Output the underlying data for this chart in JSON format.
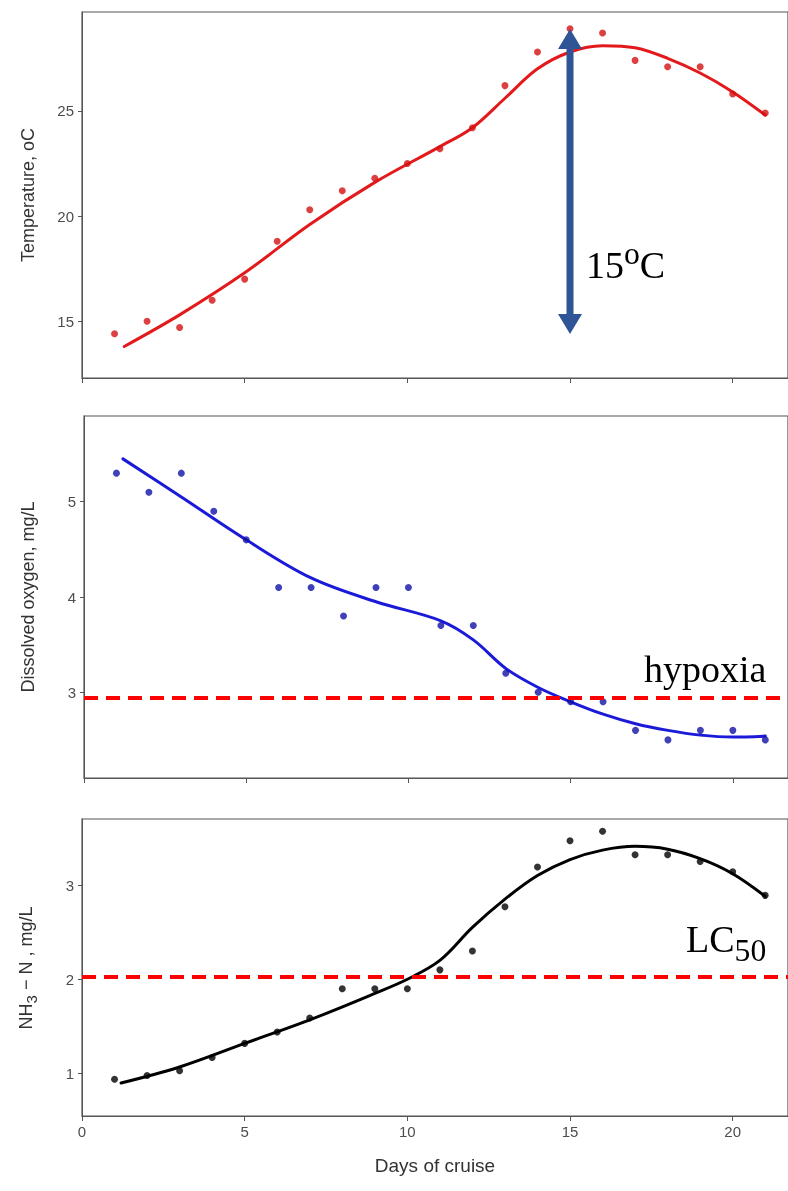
{
  "chart_data": [
    {
      "type": "scatter",
      "ylabel": "Temperature, oC",
      "x": [
        1,
        2,
        3,
        4,
        5,
        6,
        7,
        8,
        9,
        10,
        11,
        12,
        13,
        14,
        15,
        16,
        17,
        18,
        19,
        20,
        21
      ],
      "xlim": [
        0,
        21.7
      ],
      "xticks": [
        0,
        5,
        10,
        15,
        20
      ],
      "ylim": [
        12.3,
        29.7
      ],
      "yticks": [
        15,
        20,
        25
      ],
      "grid": false,
      "tick_labels": "y",
      "series": [
        {
          "color": "#d41010",
          "marker": "circle",
          "values": [
            14.4,
            15.0,
            14.7,
            16.0,
            17.0,
            18.8,
            20.3,
            21.2,
            21.8,
            22.5,
            23.2,
            24.2,
            26.2,
            27.8,
            28.9,
            28.7,
            27.4,
            27.1,
            27.1,
            25.8,
            24.9
          ]
        },
        {
          "type": "line",
          "color": "#e31a1c",
          "marker": "none",
          "line_style": "solid",
          "x": [
            1.3,
            3,
            5,
            7,
            9,
            11,
            12,
            13,
            14,
            15,
            16,
            17,
            18,
            19,
            20,
            21
          ],
          "values": [
            13.8,
            15.3,
            17.3,
            19.6,
            21.6,
            23.3,
            24.2,
            25.6,
            27.0,
            27.8,
            28.1,
            28.0,
            27.5,
            26.8,
            25.9,
            24.8
          ]
        }
      ],
      "annotations": [
        "15$^{o}$C"
      ]
    },
    {
      "type": "scatter",
      "ylabel": "Dissolved oxygen, mg/L",
      "x": [
        1,
        2,
        3,
        4,
        5,
        6,
        7,
        8,
        9,
        10,
        11,
        12,
        13,
        14,
        15,
        16,
        17,
        18,
        19,
        20,
        21
      ],
      "xlim": [
        0,
        21.7
      ],
      "xticks": [
        0,
        5,
        10,
        15,
        20
      ],
      "ylim": [
        2.1,
        5.9
      ],
      "yticks": [
        3,
        4,
        5
      ],
      "grid": false,
      "tick_labels": "y",
      "series": [
        {
          "color": "#1010a8",
          "marker": "circle",
          "values": [
            5.3,
            5.1,
            5.3,
            4.9,
            4.6,
            4.1,
            4.1,
            3.8,
            4.1,
            4.1,
            3.7,
            3.7,
            3.2,
            3.0,
            2.9,
            2.9,
            2.6,
            2.5,
            2.6,
            2.6,
            2.5
          ]
        },
        {
          "type": "line",
          "color": "#1a1ad8",
          "marker": "none",
          "line_style": "solid",
          "x": [
            1.2,
            3,
            5,
            7,
            9,
            11,
            12,
            13,
            14,
            15,
            16,
            17,
            18,
            19,
            20,
            21
          ],
          "values": [
            5.45,
            5.05,
            4.6,
            4.2,
            3.95,
            3.75,
            3.55,
            3.25,
            3.05,
            2.9,
            2.77,
            2.67,
            2.6,
            2.55,
            2.53,
            2.54
          ]
        }
      ],
      "ref_lines": [
        {
          "axis": "y",
          "value": 2.94,
          "label": "hypoxia",
          "color": "#ff0000",
          "line_style": "dashed"
        }
      ]
    },
    {
      "type": "scatter",
      "ylabel": "NH$_{3}$ − N , mg/L",
      "xlabel": "Days of cruise",
      "x": [
        1,
        2,
        3,
        4,
        5,
        6,
        7,
        8,
        9,
        10,
        11,
        12,
        13,
        14,
        15,
        16,
        17,
        18,
        19,
        20,
        21
      ],
      "xlim": [
        0,
        21.7
      ],
      "xticks": [
        0,
        5,
        10,
        15,
        20
      ],
      "ylim": [
        0.55,
        3.7
      ],
      "yticks": [
        1,
        2,
        3
      ],
      "grid": false,
      "series": [
        {
          "color": "#000000",
          "marker": "circle",
          "values": [
            0.94,
            0.98,
            1.03,
            1.17,
            1.32,
            1.44,
            1.59,
            1.9,
            1.9,
            1.9,
            2.1,
            2.3,
            2.77,
            3.19,
            3.47,
            3.57,
            3.32,
            3.32,
            3.25,
            3.14,
            2.89
          ]
        },
        {
          "type": "line",
          "color": "#000000",
          "marker": "none",
          "line_style": "solid",
          "x": [
            1.2,
            3,
            5,
            7,
            9,
            10,
            11,
            12,
            13,
            14,
            15,
            16,
            17,
            18,
            19,
            20,
            21
          ],
          "values": [
            0.9,
            1.07,
            1.32,
            1.57,
            1.85,
            2.0,
            2.2,
            2.55,
            2.85,
            3.1,
            3.27,
            3.37,
            3.41,
            3.38,
            3.28,
            3.12,
            2.88
          ]
        }
      ],
      "ref_lines": [
        {
          "axis": "y",
          "value": 2.03,
          "label": "LC$_{50}$",
          "color": "#ff0000",
          "line_style": "dashed"
        }
      ]
    }
  ]
}
